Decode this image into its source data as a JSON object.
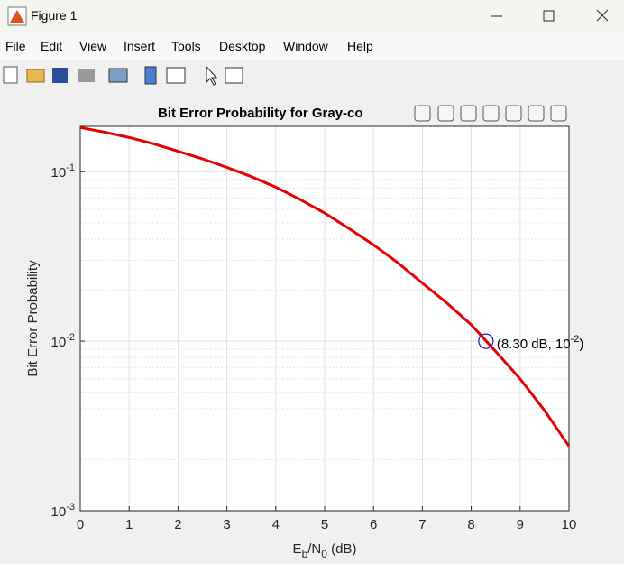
{
  "window": {
    "title": "Figure 1"
  },
  "menu": [
    "File",
    "Edit",
    "View",
    "Insert",
    "Tools",
    "Desktop",
    "Window",
    "Help"
  ],
  "chart_data": {
    "type": "line",
    "title": "Bit Error Probability for Gray-co",
    "ylabel": "Bit Error Probability",
    "xlabel": [
      "E",
      "b",
      "/N",
      "0",
      " (dB)"
    ],
    "x": [
      0,
      0.5,
      1,
      1.5,
      2,
      2.5,
      3,
      3.5,
      4,
      4.5,
      5,
      5.5,
      6,
      6.5,
      7,
      7.5,
      8,
      8.5,
      9,
      9.5,
      10
    ],
    "series": [
      {
        "color": "#e60000",
        "values": [
          0.182,
          0.171,
          0.159,
          0.146,
          0.132,
          0.119,
          0.106,
          0.0935,
          0.081,
          0.0685,
          0.057,
          0.0462,
          0.037,
          0.029,
          0.022,
          0.0168,
          0.0125,
          0.0087,
          0.006,
          0.0039,
          0.0024
        ]
      }
    ],
    "xlim": [
      0,
      10
    ],
    "xticks": [
      0,
      1,
      2,
      3,
      4,
      5,
      6,
      7,
      8,
      9,
      10
    ],
    "ylim": [
      0.001,
      0.185
    ],
    "log_y": true,
    "yticks": [
      {
        "value": 0.001,
        "label": "10",
        "exponent": "-3"
      },
      {
        "value": 0.01,
        "label": "10",
        "exponent": "-2"
      },
      {
        "value": 0.1,
        "label": "10",
        "exponent": "-1"
      }
    ],
    "grid": true,
    "marker": {
      "x": 8.3,
      "y": 0.01,
      "color": "#1a1aa8",
      "label": "(8.30 dB, 10",
      "label_exponent": "-2",
      "label_end": ")"
    }
  }
}
